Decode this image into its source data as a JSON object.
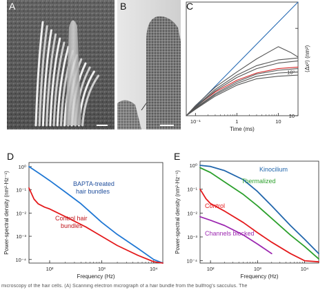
{
  "figure": {
    "panels": {
      "A": {
        "label": "A"
      },
      "B": {
        "label": "B"
      },
      "C": {
        "label": "C"
      },
      "D": {
        "label": "D"
      },
      "E": {
        "label": "E"
      }
    },
    "caption": "microscopy of the hair cells. (A) Scanning electron micrograph of a hair bundle from the bullfrog's sacculus. The"
  },
  "chart_data": [
    {
      "panel": "C",
      "type": "line",
      "xlabel": "Time (ms)",
      "ylabel": "⟨Δx²⟩ (nm²)",
      "xscale": "log",
      "yscale": "log",
      "xlim": [
        0.06,
        30
      ],
      "ylim": [
        1,
        400
      ],
      "x_ticks": [
        "10⁻¹",
        "1",
        "10"
      ],
      "y_ticks": [
        "10",
        "10²"
      ],
      "series": [
        {
          "color": "#2a6db5",
          "x": [
            0.06,
            30
          ],
          "y": [
            1,
            400
          ]
        },
        {
          "color": "#d62728",
          "x": [
            0.06,
            0.1,
            0.3,
            1,
            3,
            10,
            30
          ],
          "y": [
            1,
            1.6,
            3.5,
            6.5,
            9.5,
            12,
            13
          ]
        },
        {
          "color": "#555555",
          "x": [
            0.06,
            0.1,
            0.3,
            1,
            3,
            10,
            20,
            30
          ],
          "y": [
            1,
            1.7,
            4.5,
            10,
            20,
            38,
            28,
            22
          ]
        },
        {
          "color": "#555555",
          "x": [
            0.06,
            0.1,
            0.3,
            1,
            3,
            10,
            30
          ],
          "y": [
            1,
            1.6,
            4,
            8.5,
            14,
            19,
            21
          ]
        },
        {
          "color": "#555555",
          "x": [
            0.06,
            0.1,
            0.3,
            1,
            3,
            10,
            30
          ],
          "y": [
            1,
            1.55,
            3.7,
            7.5,
            12,
            16,
            18
          ]
        },
        {
          "color": "#555555",
          "x": [
            0.06,
            0.1,
            0.3,
            1,
            3,
            10,
            30
          ],
          "y": [
            1,
            1.5,
            3.2,
            6,
            9,
            11,
            12
          ]
        },
        {
          "color": "#555555",
          "x": [
            0.06,
            0.1,
            0.3,
            1,
            3,
            10,
            30
          ],
          "y": [
            1,
            1.45,
            3,
            5.5,
            8,
            9.5,
            10
          ]
        },
        {
          "color": "#555555",
          "x": [
            0.06,
            0.1,
            0.3,
            1,
            3,
            10,
            30
          ],
          "y": [
            1,
            1.4,
            2.8,
            5,
            7,
            8,
            8.5
          ]
        }
      ]
    },
    {
      "panel": "D",
      "type": "line",
      "xlabel": "Frequency (Hz)",
      "ylabel": "Power-spectral density (nm²·Hz⁻¹)",
      "xscale": "log",
      "yscale": "log",
      "xlim": [
        40,
        15000
      ],
      "ylim": [
        7e-05,
        1.5
      ],
      "x_ticks": [
        "10²",
        "10³",
        "10⁴"
      ],
      "y_ticks": [
        "10⁰",
        "10⁻¹",
        "10⁻²",
        "10⁻³",
        "10⁻⁴"
      ],
      "series": [
        {
          "name": "BAPTA-treated hair bundles",
          "color": "#1f77d4",
          "x": [
            40,
            60,
            100,
            200,
            400,
            1000,
            2000,
            5000,
            10000,
            15000
          ],
          "y": [
            1.0,
            0.55,
            0.25,
            0.08,
            0.025,
            0.004,
            0.0012,
            0.0003,
            0.0001,
            7e-05
          ]
        },
        {
          "name": "Control hair bundles",
          "color": "#e41a1c",
          "x": [
            40,
            50,
            60,
            80,
            100,
            200,
            500,
            1000,
            2000,
            5000,
            10000,
            15000
          ],
          "y": [
            0.12,
            0.04,
            0.025,
            0.018,
            0.015,
            0.007,
            0.0025,
            0.001,
            0.0004,
            0.00015,
            8e-05,
            7e-05
          ]
        }
      ]
    },
    {
      "panel": "E",
      "type": "line",
      "xlabel": "Frequency (Hz)",
      "ylabel": "Power-spectral density (nm²·Hz⁻¹)",
      "xscale": "log",
      "yscale": "log",
      "xlim": [
        60,
        20000
      ],
      "ylim": [
        8e-05,
        1.5
      ],
      "x_ticks": [
        "10²",
        "10³",
        "10⁴"
      ],
      "y_ticks": [
        "10⁰",
        "10⁻¹",
        "10⁻²",
        "10⁻³",
        "10⁻⁴"
      ],
      "series": [
        {
          "name": "Kinocilium",
          "color": "#2166ac",
          "x": [
            60,
            100,
            200,
            500,
            1000,
            2000,
            5000,
            10000,
            20000
          ],
          "y": [
            1.0,
            0.9,
            0.6,
            0.25,
            0.08,
            0.02,
            0.003,
            0.0008,
            0.0002
          ]
        },
        {
          "name": "Thermalized",
          "color": "#2ca02c",
          "x": [
            60,
            100,
            200,
            500,
            1000,
            2000,
            5000,
            10000,
            20000
          ],
          "y": [
            0.8,
            0.5,
            0.2,
            0.06,
            0.02,
            0.006,
            0.0012,
            0.0004,
            0.00012
          ]
        },
        {
          "name": "Control",
          "color": "#e41a1c",
          "x": [
            60,
            80,
            100,
            200,
            500,
            1000,
            2000,
            5000,
            10000,
            20000
          ],
          "y": [
            0.1,
            0.04,
            0.025,
            0.012,
            0.004,
            0.0015,
            0.0006,
            0.0002,
            0.0001,
            9e-05
          ]
        },
        {
          "name": "Channels blocked",
          "color": "#9c27b0",
          "x": [
            60,
            100,
            200,
            500,
            1000,
            2000
          ],
          "y": [
            0.007,
            0.005,
            0.003,
            0.0012,
            0.0005,
            0.0002
          ]
        }
      ]
    }
  ],
  "annotations": {
    "D_bapta_1": "BAPTA-treated",
    "D_bapta_2": "hair bundles",
    "D_control_1": "Control hair",
    "D_control_2": "bundles",
    "E_kino": "Kinocilium",
    "E_therm": "Thermalized",
    "E_control": "Control",
    "E_blocked": "Channels blocked"
  },
  "colors": {
    "blue": "#1f77d4",
    "red": "#e41a1c",
    "green": "#2ca02c",
    "purple": "#9c27b0",
    "gray": "#555555"
  }
}
